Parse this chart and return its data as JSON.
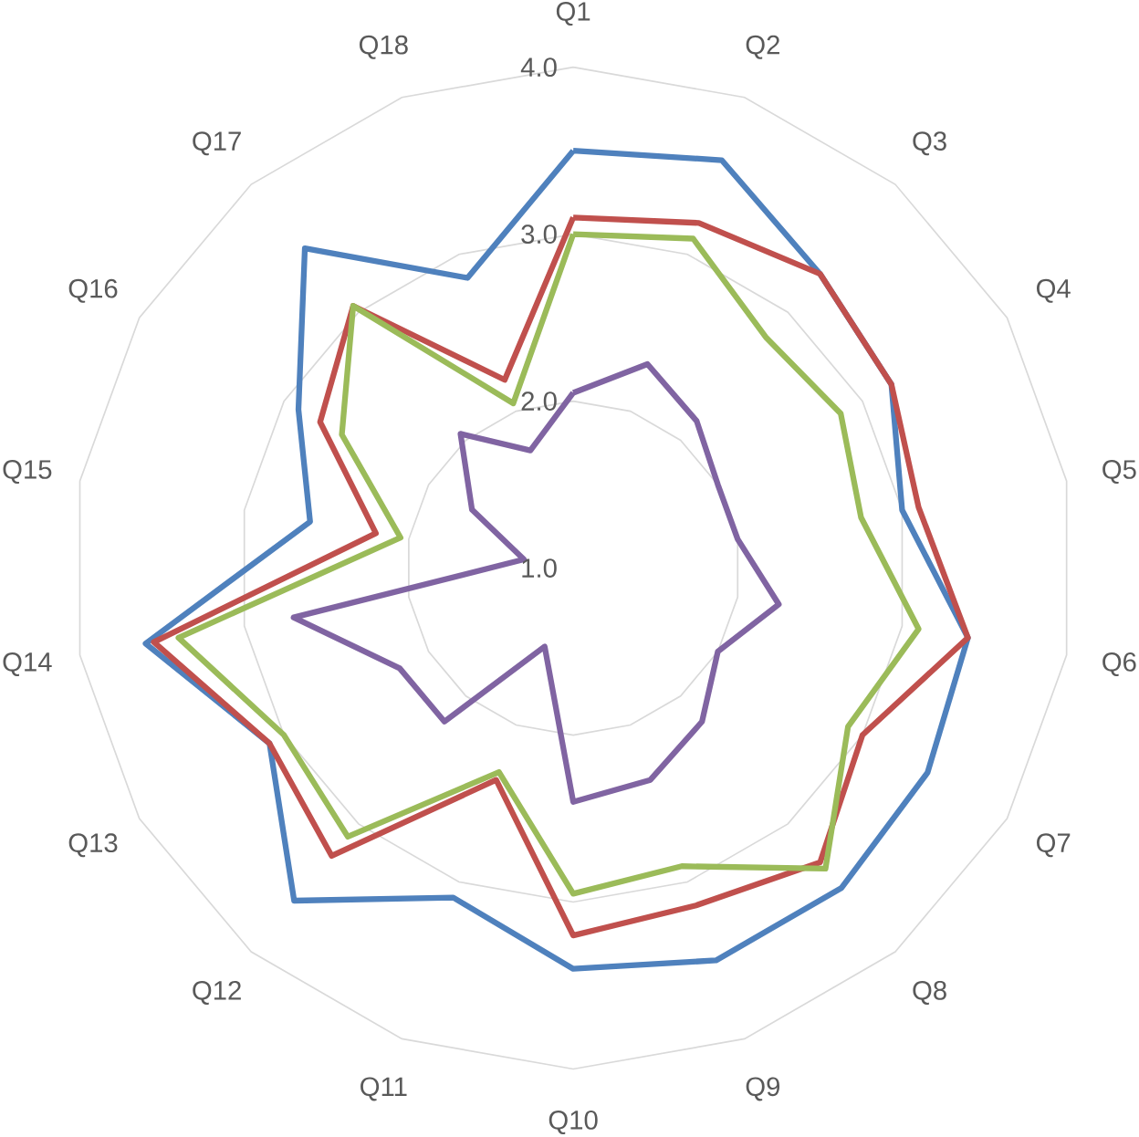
{
  "chart_data": {
    "type": "radar",
    "categories": [
      "Q1",
      "Q2",
      "Q3",
      "Q4",
      "Q5",
      "Q6",
      "Q7",
      "Q8",
      "Q9",
      "Q10",
      "Q11",
      "Q12",
      "Q13",
      "Q14",
      "Q15",
      "Q16",
      "Q17",
      "Q18"
    ],
    "series": [
      {
        "color": "#4f81bd",
        "values": [
          3.5,
          3.6,
          3.3,
          3.2,
          3.0,
          3.4,
          3.45,
          3.5,
          3.5,
          3.4,
          3.1,
          3.6,
          3.1,
          3.6,
          2.6,
          2.9,
          3.5,
          2.85
        ]
      },
      {
        "color": "#c0504d",
        "values": [
          3.1,
          3.2,
          3.3,
          3.2,
          3.1,
          3.4,
          3.0,
          3.3,
          3.15,
          3.2,
          2.35,
          3.25,
          3.1,
          3.55,
          2.2,
          2.75,
          3.05,
          2.2
        ]
      },
      {
        "color": "#9bbb59",
        "values": [
          3.0,
          3.1,
          2.8,
          2.85,
          2.75,
          3.1,
          2.9,
          3.35,
          2.9,
          2.95,
          2.3,
          3.1,
          3.0,
          3.4,
          2.05,
          2.6,
          3.05,
          2.05
        ]
      },
      {
        "color": "#8064a2",
        "values": [
          2.05,
          2.3,
          2.15,
          2.0,
          2.0,
          2.25,
          2.0,
          2.2,
          2.35,
          2.4,
          1.5,
          2.2,
          2.2,
          2.7,
          1.3,
          1.7,
          2.05,
          1.75
        ]
      }
    ],
    "ylim": [
      1,
      4
    ],
    "yticks": [
      {
        "value": 1,
        "label": "1.0"
      },
      {
        "value": 2,
        "label": "2.0"
      },
      {
        "value": 3,
        "label": "3.0"
      },
      {
        "value": 4,
        "label": "4.0"
      }
    ],
    "grid": true,
    "marker": "none",
    "line_style": "solid"
  }
}
